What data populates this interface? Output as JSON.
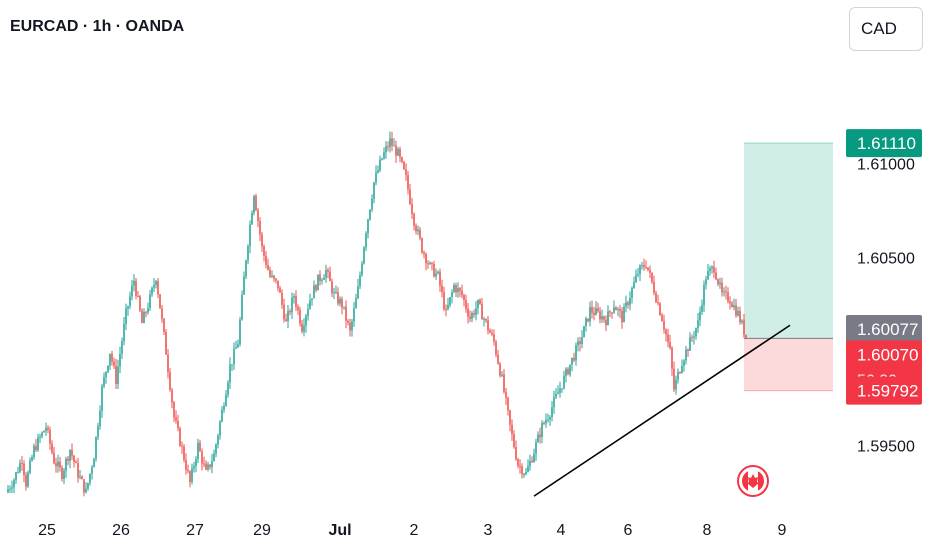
{
  "header": {
    "title": "EURCAD · 1h · OANDA",
    "currency": "CAD"
  },
  "icons": {
    "flag": "canada-flag-icon"
  },
  "colors": {
    "up": "#26a69a",
    "down": "#ef5350",
    "profit_zone": "#d1ede8",
    "loss_zone": "#fcd9db",
    "target_label": "#089981",
    "current_label": "#f23645",
    "stop_label": "#f23645",
    "prev_label": "#787b86"
  },
  "chart_data": {
    "type": "candlestick",
    "title": "EURCAD · 1h · OANDA",
    "xlabel": "",
    "ylabel": "",
    "x_ticks": [
      "25",
      "26",
      "27",
      "29",
      "Jul",
      "2",
      "3",
      "4",
      "6",
      "8",
      "9"
    ],
    "y_ticks": [
      "1.61000",
      "1.60500",
      "1.59500"
    ],
    "ylim": [
      1.5922,
      1.6135
    ],
    "grid": false,
    "path": [
      [
        0,
        1.5925
      ],
      [
        4,
        1.5932
      ],
      [
        8,
        1.5943
      ],
      [
        10,
        1.593
      ],
      [
        14,
        1.5948
      ],
      [
        20,
        1.596
      ],
      [
        24,
        1.5942
      ],
      [
        28,
        1.5935
      ],
      [
        32,
        1.5948
      ],
      [
        36,
        1.5935
      ],
      [
        40,
        1.5925
      ],
      [
        44,
        1.5945
      ],
      [
        48,
        1.598
      ],
      [
        52,
        1.6
      ],
      [
        55,
        1.5985
      ],
      [
        60,
        1.602
      ],
      [
        64,
        1.6038
      ],
      [
        68,
        1.6015
      ],
      [
        72,
        1.6028
      ],
      [
        75,
        1.604
      ],
      [
        80,
        1.6
      ],
      [
        84,
        1.5965
      ],
      [
        88,
        1.5948
      ],
      [
        92,
        1.593
      ],
      [
        96,
        1.595
      ],
      [
        100,
        1.5935
      ],
      [
        104,
        1.5945
      ],
      [
        108,
        1.5968
      ],
      [
        112,
        1.5992
      ],
      [
        116,
        1.6005
      ],
      [
        120,
        1.605
      ],
      [
        124,
        1.6085
      ],
      [
        128,
        1.6055
      ],
      [
        132,
        1.604
      ],
      [
        136,
        1.6035
      ],
      [
        140,
        1.6015
      ],
      [
        144,
        1.603
      ],
      [
        148,
        1.6013
      ],
      [
        152,
        1.6028
      ],
      [
        156,
        1.6038
      ],
      [
        160,
        1.6043
      ],
      [
        164,
        1.603
      ],
      [
        168,
        1.6025
      ],
      [
        172,
        1.601
      ],
      [
        176,
        1.6033
      ],
      [
        180,
        1.6065
      ],
      [
        184,
        1.609
      ],
      [
        188,
        1.6103
      ],
      [
        192,
        1.6112
      ],
      [
        196,
        1.6105
      ],
      [
        200,
        1.6092
      ],
      [
        204,
        1.607
      ],
      [
        208,
        1.6055
      ],
      [
        212,
        1.6045
      ],
      [
        216,
        1.604
      ],
      [
        220,
        1.602
      ],
      [
        224,
        1.6035
      ],
      [
        228,
        1.603
      ],
      [
        232,
        1.6018
      ],
      [
        236,
        1.6025
      ],
      [
        240,
        1.6015
      ],
      [
        244,
        1.6005
      ],
      [
        248,
        1.5985
      ],
      [
        252,
        1.596
      ],
      [
        256,
        1.594
      ],
      [
        260,
        1.5935
      ],
      [
        264,
        1.5947
      ],
      [
        268,
        1.596
      ],
      [
        272,
        1.5968
      ],
      [
        276,
        1.5978
      ],
      [
        280,
        1.5988
      ],
      [
        284,
        1.5998
      ],
      [
        288,
        1.6008
      ],
      [
        292,
        1.6022
      ],
      [
        296,
        1.602
      ],
      [
        300,
        1.6017
      ],
      [
        304,
        1.6025
      ],
      [
        308,
        1.6018
      ],
      [
        312,
        1.603
      ],
      [
        316,
        1.6042
      ],
      [
        320,
        1.6047
      ],
      [
        324,
        1.6033
      ],
      [
        328,
        1.6018
      ],
      [
        332,
        1.6
      ],
      [
        334,
        1.598
      ],
      [
        338,
        1.5995
      ],
      [
        342,
        1.6005
      ],
      [
        346,
        1.6015
      ],
      [
        350,
        1.604
      ],
      [
        354,
        1.6045
      ],
      [
        358,
        1.603
      ],
      [
        362,
        1.6028
      ],
      [
        366,
        1.602
      ],
      [
        370,
        1.6008
      ]
    ],
    "trendline": {
      "start": [
        264,
        1.5923
      ],
      "end": [
        392,
        1.6014
      ]
    },
    "position": {
      "entry": 1.6007,
      "target": 1.6111,
      "stop": 1.59792
    },
    "price_labels": [
      {
        "value": "1.61110",
        "kind": "target"
      },
      {
        "value": "1.60077",
        "kind": "prev"
      },
      {
        "value": "1.60070",
        "sub": "56:30",
        "kind": "current"
      },
      {
        "value": "1.59792",
        "kind": "stop"
      }
    ]
  }
}
